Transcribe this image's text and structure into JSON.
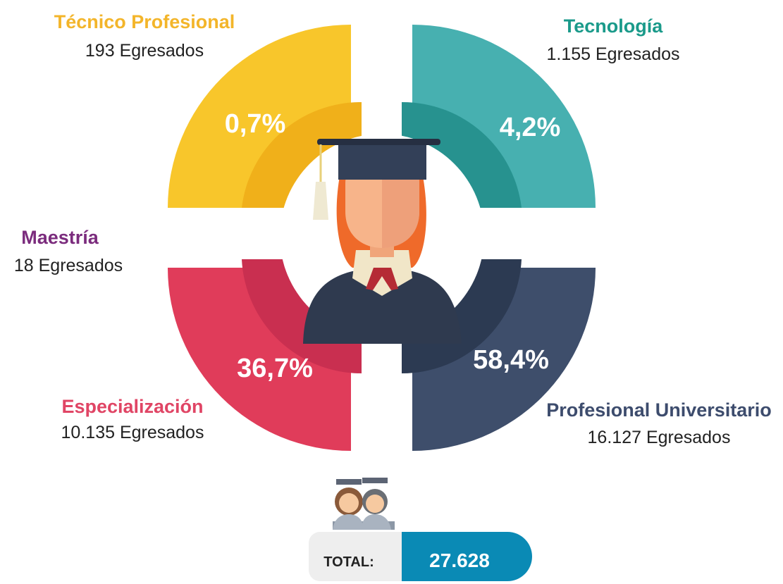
{
  "segments": [
    {
      "label": "Técnico Profesional",
      "count": "193 Egresados",
      "percent": "0,7%"
    },
    {
      "label": "Tecnología",
      "count": "1.155 Egresados",
      "percent": "4,2%"
    },
    {
      "label": "Maestría",
      "count": "18 Egresados"
    },
    {
      "label": "Especialización",
      "count": "10.135 Egresados",
      "percent": "36,7%"
    },
    {
      "label": "Profesional Universitario",
      "count": "16.127 Egresados",
      "percent": "58,4%"
    }
  ],
  "total": {
    "label": "TOTAL:",
    "value": "27.628"
  }
}
